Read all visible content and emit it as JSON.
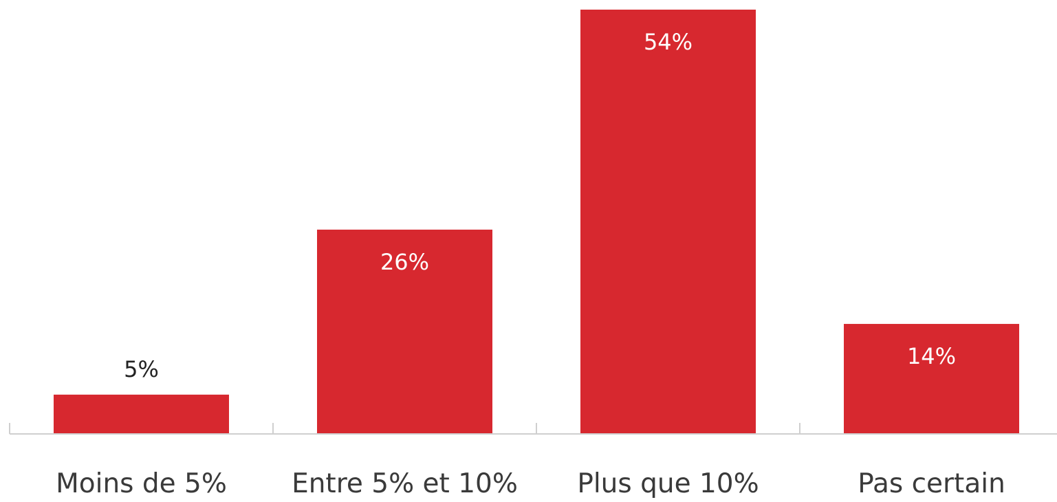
{
  "chart_data": {
    "type": "bar",
    "categories": [
      "Moins de 5%",
      "Entre 5% et 10%",
      "Plus que 10%",
      "Pas certain"
    ],
    "values": [
      5,
      26,
      54,
      14
    ],
    "data_labels": [
      "5%",
      "26%",
      "54%",
      "14%"
    ],
    "title": "",
    "xlabel": "",
    "ylabel": "",
    "ylim": [
      0,
      54
    ],
    "grid": false,
    "legend": "none",
    "colors": {
      "bar": "#d7282f",
      "label_inside": "#ffffff",
      "label_outside": "#222222",
      "axis": "#cfcfcf",
      "category_text": "#3a3a3a"
    }
  }
}
